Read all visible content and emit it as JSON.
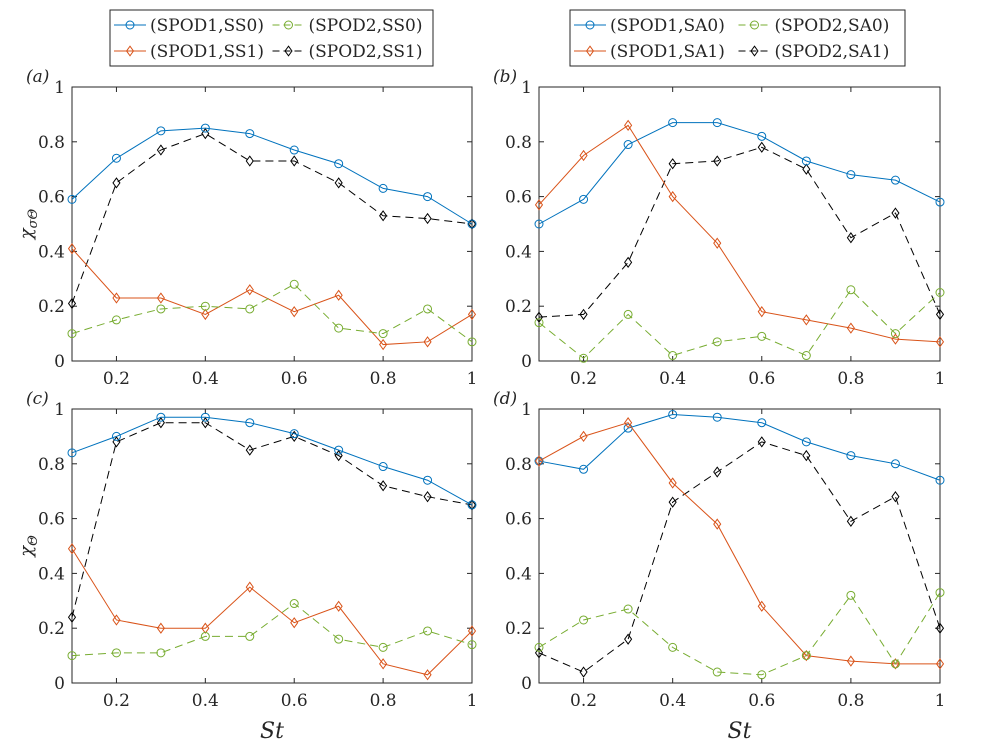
{
  "colors": {
    "spod1_s0": "#0072BD",
    "spod1_s1": "#D95319",
    "spod2_s0": "#77AC30",
    "spod2_s1": "#000000",
    "axis": "#262626"
  },
  "legends": [
    {
      "entries": [
        {
          "label": "(SPOD1,SS0)",
          "key": "spod1_s0",
          "dash": false,
          "marker": "circle"
        },
        {
          "label": "(SPOD2,SS0)",
          "key": "spod2_s0",
          "dash": true,
          "marker": "circle"
        },
        {
          "label": "(SPOD1,SS1)",
          "key": "spod1_s1",
          "dash": false,
          "marker": "diamond"
        },
        {
          "label": "(SPOD2,SS1)",
          "key": "spod2_s1",
          "dash": true,
          "marker": "diamond"
        }
      ]
    },
    {
      "entries": [
        {
          "label": "(SPOD1,SA0)",
          "key": "spod1_s0",
          "dash": false,
          "marker": "circle"
        },
        {
          "label": "(SPOD2,SA0)",
          "key": "spod2_s0",
          "dash": true,
          "marker": "circle"
        },
        {
          "label": "(SPOD1,SA1)",
          "key": "spod1_s1",
          "dash": false,
          "marker": "diamond"
        },
        {
          "label": "(SPOD2,SA1)",
          "key": "spod2_s1",
          "dash": true,
          "marker": "diamond"
        }
      ]
    }
  ],
  "chart_data": [
    {
      "panel": "(a)",
      "type": "line",
      "ylabel_base": "χ",
      "ylabel_sub": "σΘ",
      "xlabel": "",
      "x": [
        0.1,
        0.2,
        0.3,
        0.4,
        0.5,
        0.6,
        0.7,
        0.8,
        0.9,
        1.0
      ],
      "xlim": [
        0.1,
        1.0
      ],
      "ylim": [
        0,
        1
      ],
      "xticks": [
        "0.2",
        "0.4",
        "0.6",
        "0.8",
        "1"
      ],
      "yticks": [
        "0",
        "0.2",
        "0.4",
        "0.6",
        "0.8",
        "1"
      ],
      "series": [
        {
          "name": "(SPOD1,SS0)",
          "key": "spod1_s0",
          "dash": false,
          "marker": "circle",
          "values": [
            0.59,
            0.74,
            0.84,
            0.85,
            0.83,
            0.77,
            0.72,
            0.63,
            0.6,
            0.5
          ]
        },
        {
          "name": "(SPOD2,SS0)",
          "key": "spod2_s0",
          "dash": true,
          "marker": "circle",
          "values": [
            0.1,
            0.15,
            0.19,
            0.2,
            0.19,
            0.28,
            0.12,
            0.1,
            0.19,
            0.07
          ]
        },
        {
          "name": "(SPOD1,SS1)",
          "key": "spod1_s1",
          "dash": false,
          "marker": "diamond",
          "values": [
            0.41,
            0.23,
            0.23,
            0.17,
            0.26,
            0.18,
            0.24,
            0.06,
            0.07,
            0.17
          ]
        },
        {
          "name": "(SPOD2,SS1)",
          "key": "spod2_s1",
          "dash": true,
          "marker": "diamond",
          "values": [
            0.21,
            0.65,
            0.77,
            0.83,
            0.73,
            0.73,
            0.65,
            0.53,
            0.52,
            0.5
          ]
        }
      ]
    },
    {
      "panel": "(b)",
      "type": "line",
      "ylabel_base": "",
      "ylabel_sub": "",
      "xlabel": "",
      "x": [
        0.1,
        0.2,
        0.3,
        0.4,
        0.5,
        0.6,
        0.7,
        0.8,
        0.9,
        1.0
      ],
      "xlim": [
        0.1,
        1.0
      ],
      "ylim": [
        0,
        1
      ],
      "xticks": [
        "0.2",
        "0.4",
        "0.6",
        "0.8",
        "1"
      ],
      "yticks": [
        "0",
        "0.2",
        "0.4",
        "0.6",
        "0.8",
        "1"
      ],
      "series": [
        {
          "name": "(SPOD1,SA0)",
          "key": "spod1_s0",
          "dash": false,
          "marker": "circle",
          "values": [
            0.5,
            0.59,
            0.79,
            0.87,
            0.87,
            0.82,
            0.73,
            0.68,
            0.66,
            0.58
          ]
        },
        {
          "name": "(SPOD2,SA0)",
          "key": "spod2_s0",
          "dash": true,
          "marker": "circle",
          "values": [
            0.14,
            0.01,
            0.17,
            0.02,
            0.07,
            0.09,
            0.02,
            0.26,
            0.1,
            0.25
          ]
        },
        {
          "name": "(SPOD1,SA1)",
          "key": "spod1_s1",
          "dash": false,
          "marker": "diamond",
          "values": [
            0.57,
            0.75,
            0.86,
            0.6,
            0.43,
            0.18,
            0.15,
            0.12,
            0.08,
            0.07
          ]
        },
        {
          "name": "(SPOD2,SA1)",
          "key": "spod2_s1",
          "dash": true,
          "marker": "diamond",
          "values": [
            0.16,
            0.17,
            0.36,
            0.72,
            0.73,
            0.78,
            0.7,
            0.45,
            0.54,
            0.17
          ]
        }
      ]
    },
    {
      "panel": "(c)",
      "type": "line",
      "ylabel_base": "χ",
      "ylabel_sub": "Θ",
      "xlabel": "St",
      "x": [
        0.1,
        0.2,
        0.3,
        0.4,
        0.5,
        0.6,
        0.7,
        0.8,
        0.9,
        1.0
      ],
      "xlim": [
        0.1,
        1.0
      ],
      "ylim": [
        0,
        1
      ],
      "xticks": [
        "0.2",
        "0.4",
        "0.6",
        "0.8",
        "1"
      ],
      "yticks": [
        "0",
        "0.2",
        "0.4",
        "0.6",
        "0.8",
        "1"
      ],
      "series": [
        {
          "name": "(SPOD1,SS0)",
          "key": "spod1_s0",
          "dash": false,
          "marker": "circle",
          "values": [
            0.84,
            0.9,
            0.97,
            0.97,
            0.95,
            0.91,
            0.85,
            0.79,
            0.74,
            0.65
          ]
        },
        {
          "name": "(SPOD2,SS0)",
          "key": "spod2_s0",
          "dash": true,
          "marker": "circle",
          "values": [
            0.1,
            0.11,
            0.11,
            0.17,
            0.17,
            0.29,
            0.16,
            0.13,
            0.19,
            0.14
          ]
        },
        {
          "name": "(SPOD1,SS1)",
          "key": "spod1_s1",
          "dash": false,
          "marker": "diamond",
          "values": [
            0.49,
            0.23,
            0.2,
            0.2,
            0.35,
            0.22,
            0.28,
            0.07,
            0.03,
            0.19
          ]
        },
        {
          "name": "(SPOD2,SS1)",
          "key": "spod2_s1",
          "dash": true,
          "marker": "diamond",
          "values": [
            0.24,
            0.88,
            0.95,
            0.95,
            0.85,
            0.9,
            0.83,
            0.72,
            0.68,
            0.65
          ]
        }
      ]
    },
    {
      "panel": "(d)",
      "type": "line",
      "ylabel_base": "",
      "ylabel_sub": "",
      "xlabel": "St",
      "x": [
        0.1,
        0.2,
        0.3,
        0.4,
        0.5,
        0.6,
        0.7,
        0.8,
        0.9,
        1.0
      ],
      "xlim": [
        0.1,
        1.0
      ],
      "ylim": [
        0,
        1
      ],
      "xticks": [
        "0.2",
        "0.4",
        "0.6",
        "0.8",
        "1"
      ],
      "yticks": [
        "0",
        "0.2",
        "0.4",
        "0.6",
        "0.8",
        "1"
      ],
      "series": [
        {
          "name": "(SPOD1,SA0)",
          "key": "spod1_s0",
          "dash": false,
          "marker": "circle",
          "values": [
            0.81,
            0.78,
            0.93,
            0.98,
            0.97,
            0.95,
            0.88,
            0.83,
            0.8,
            0.74
          ]
        },
        {
          "name": "(SPOD2,SA0)",
          "key": "spod2_s0",
          "dash": true,
          "marker": "circle",
          "values": [
            0.13,
            0.23,
            0.27,
            0.13,
            0.04,
            0.03,
            0.1,
            0.32,
            0.07,
            0.33
          ]
        },
        {
          "name": "(SPOD1,SA1)",
          "key": "spod1_s1",
          "dash": false,
          "marker": "diamond",
          "values": [
            0.81,
            0.9,
            0.95,
            0.73,
            0.58,
            0.28,
            0.1,
            0.08,
            0.07,
            0.07
          ]
        },
        {
          "name": "(SPOD2,SA1)",
          "key": "spod2_s1",
          "dash": true,
          "marker": "diamond",
          "values": [
            0.11,
            0.04,
            0.16,
            0.66,
            0.77,
            0.88,
            0.83,
            0.59,
            0.68,
            0.2
          ]
        }
      ]
    }
  ]
}
